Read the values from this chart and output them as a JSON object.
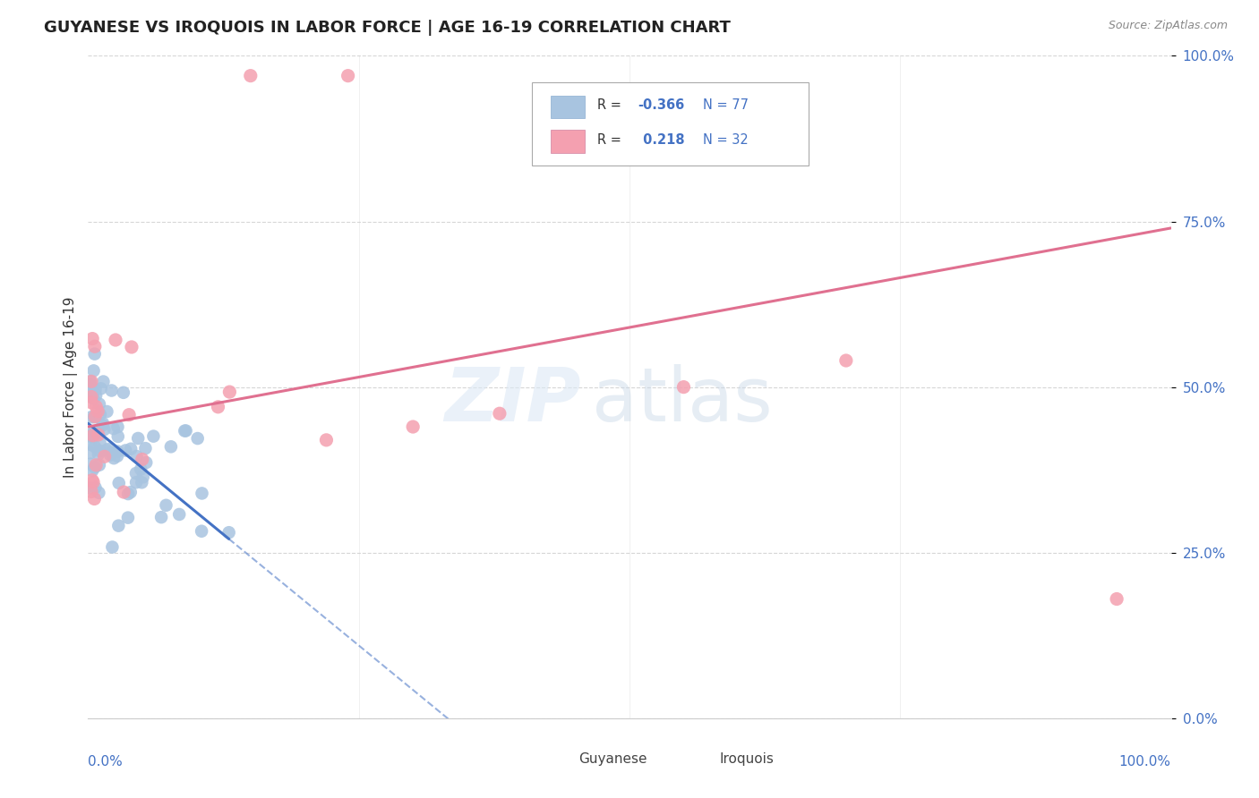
{
  "title": "GUYANESE VS IROQUOIS IN LABOR FORCE | AGE 16-19 CORRELATION CHART",
  "source": "Source: ZipAtlas.com",
  "ylabel": "In Labor Force | Age 16-19",
  "y_tick_labels": [
    "0.0%",
    "25.0%",
    "50.0%",
    "75.0%",
    "100.0%"
  ],
  "y_tick_positions": [
    0.0,
    0.25,
    0.5,
    0.75,
    1.0
  ],
  "legend_guyanese": "Guyanese",
  "legend_iroquois": "Iroquois",
  "R_guyanese": -0.366,
  "N_guyanese": 77,
  "R_iroquois": 0.218,
  "N_iroquois": 32,
  "color_guyanese": "#a8c4e0",
  "color_guyanese_line": "#4472c4",
  "color_iroquois": "#f4a0b0",
  "color_iroquois_line": "#e07090",
  "color_label": "#4472c4",
  "background_color": "#ffffff",
  "grid_color": "#cccccc"
}
